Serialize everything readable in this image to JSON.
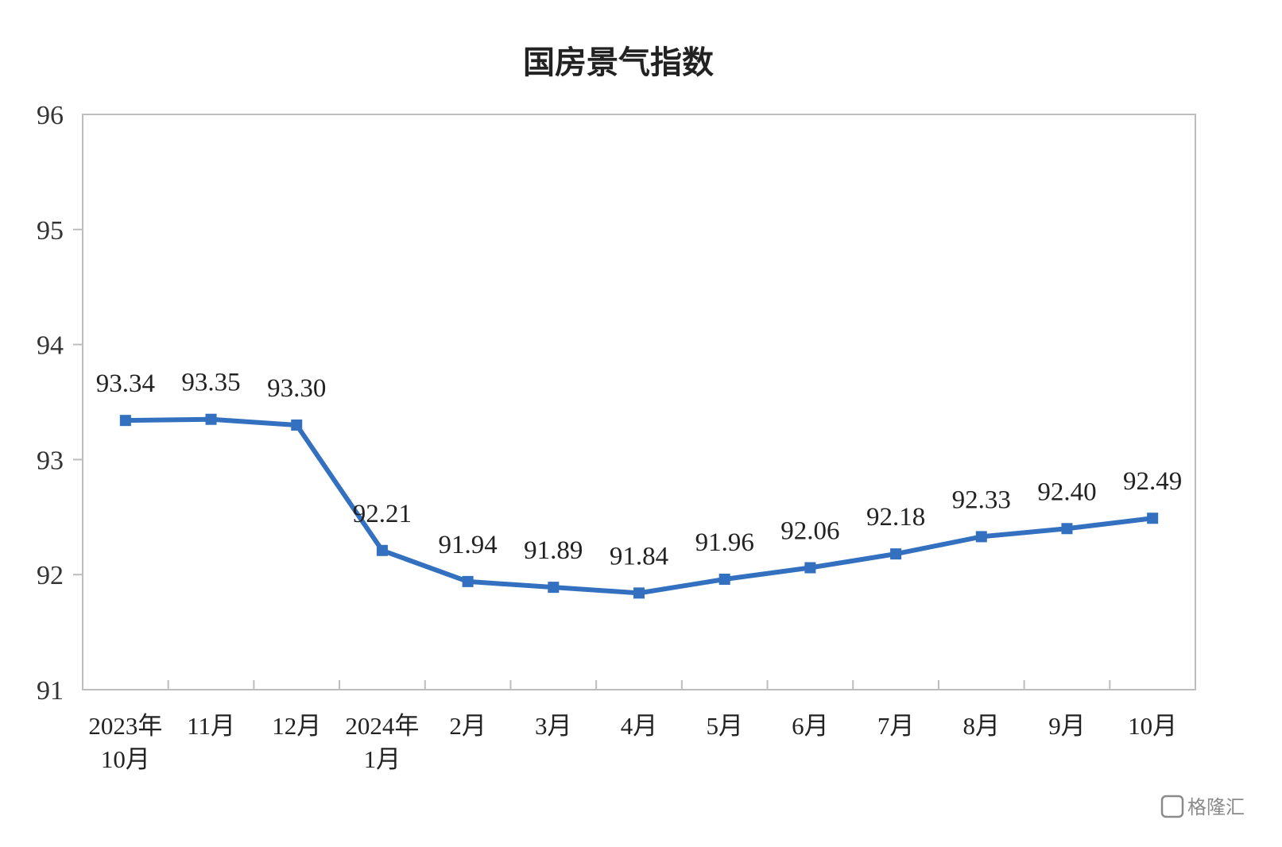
{
  "chart_data": {
    "type": "line",
    "title": "国房景气指数",
    "categories": [
      [
        "2023年",
        "10月"
      ],
      [
        "11月"
      ],
      [
        "12月"
      ],
      [
        "2024年",
        "1月"
      ],
      [
        "2月"
      ],
      [
        "3月"
      ],
      [
        "4月"
      ],
      [
        "5月"
      ],
      [
        "6月"
      ],
      [
        "7月"
      ],
      [
        "8月"
      ],
      [
        "9月"
      ],
      [
        "10月"
      ]
    ],
    "values": [
      93.34,
      93.35,
      93.3,
      92.21,
      91.94,
      91.89,
      91.84,
      91.96,
      92.06,
      92.18,
      92.33,
      92.4,
      92.49
    ],
    "data_labels": [
      "93.34",
      "93.35",
      "93.30",
      "92.21",
      "91.94",
      "91.89",
      "91.84",
      "91.96",
      "92.06",
      "92.18",
      "92.33",
      "92.40",
      "92.49"
    ],
    "ylim": [
      91,
      96
    ],
    "yticks": [
      91,
      92,
      93,
      94,
      95,
      96
    ],
    "grid": false,
    "legend": "none",
    "line_color": "#3370c0",
    "axis_color": "#bdbdbd"
  },
  "watermark": {
    "text": "格隆汇",
    "icon": "glh-logo-icon"
  }
}
